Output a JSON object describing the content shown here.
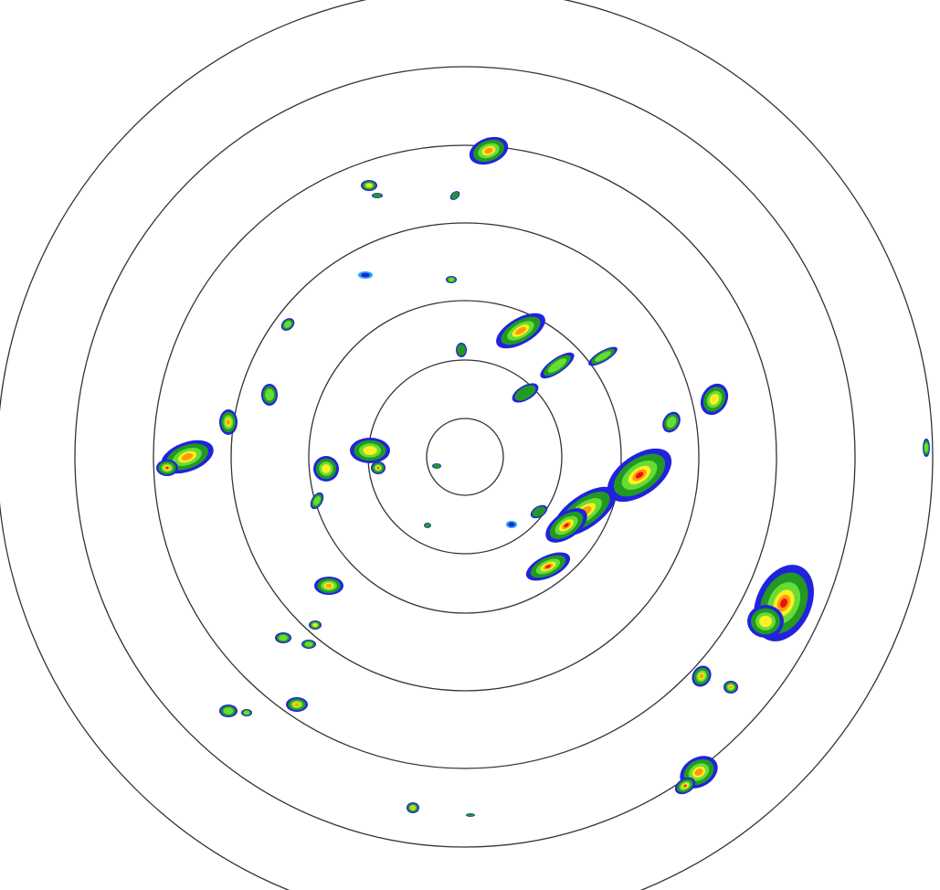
{
  "radar": {
    "ring_color": "#333333",
    "background": "#ffffff",
    "palette": {
      "light": "#2222dd",
      "weak": "#22aaee",
      "low": "#229922",
      "moderate": "#66dd33",
      "elevated": "#ffee22",
      "high": "#ff9911",
      "severe": "#ee1111"
    }
  }
}
